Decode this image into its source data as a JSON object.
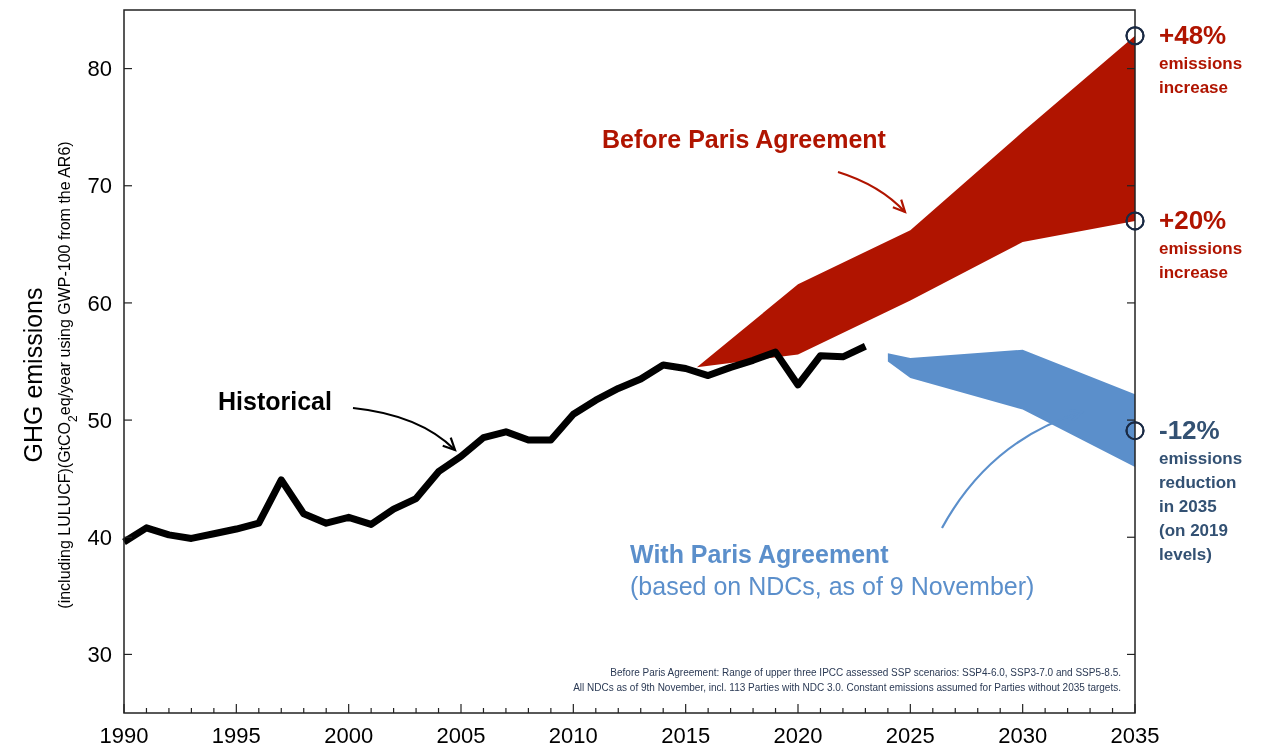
{
  "chart_data": {
    "type": "line",
    "ylabel": "GHG emissions\n(including LULUCF)(GtCO$_{2}$eq/year using GWP-100 from the AR6)",
    "xlim": [
      1990,
      2035
    ],
    "ylim": [
      25,
      85
    ],
    "xticks": [
      1990,
      {
        "value": 1991,
        "label": null
      },
      {
        "value": 1992,
        "label": null
      },
      {
        "value": 1993,
        "label": null
      },
      {
        "value": 1994,
        "label": null
      },
      1995,
      {
        "value": 1996,
        "label": null
      },
      {
        "value": 1997,
        "label": null
      },
      {
        "value": 1998,
        "label": null
      },
      {
        "value": 1999,
        "label": null
      },
      2000,
      {
        "value": 2001,
        "label": null
      },
      {
        "value": 2002,
        "label": null
      },
      {
        "value": 2003,
        "label": null
      },
      {
        "value": 2004,
        "label": null
      },
      2005,
      {
        "value": 2006,
        "label": null
      },
      {
        "value": 2007,
        "label": null
      },
      {
        "value": 2008,
        "label": null
      },
      {
        "value": 2009,
        "label": null
      },
      2010,
      {
        "value": 2011,
        "label": null
      },
      {
        "value": 2012,
        "label": null
      },
      {
        "value": 2013,
        "label": null
      },
      {
        "value": 2014,
        "label": null
      },
      2015,
      {
        "value": 2016,
        "label": null
      },
      {
        "value": 2017,
        "label": null
      },
      {
        "value": 2018,
        "label": null
      },
      {
        "value": 2019,
        "label": null
      },
      2020,
      {
        "value": 2021,
        "label": null
      },
      {
        "value": 2022,
        "label": null
      },
      {
        "value": 2023,
        "label": null
      },
      {
        "value": 2024,
        "label": null
      },
      2025,
      {
        "value": 2026,
        "label": null
      },
      {
        "value": 2027,
        "label": null
      },
      {
        "value": 2028,
        "label": null
      },
      {
        "value": 2029,
        "label": null
      },
      2030,
      {
        "value": 2031,
        "label": null
      },
      {
        "value": 2032,
        "label": null
      },
      {
        "value": 2033,
        "label": null
      },
      {
        "value": 2034,
        "label": null
      },
      2035
    ],
    "yticks": [
      30,
      40,
      50,
      60,
      70,
      80
    ],
    "grid": false,
    "marker": "none",
    "line_style": "solid",
    "series": [
      {
        "name": "Historical",
        "color": "#000000",
        "x": [
          1990,
          1991,
          1992,
          1993,
          1994,
          1995,
          1996,
          1997,
          1998,
          1999,
          2000,
          2001,
          2002,
          2003,
          2004,
          2005,
          2006,
          2007,
          2008,
          2009,
          2010,
          2011,
          2012,
          2013,
          2014,
          2015,
          2016,
          2017,
          2018,
          2019,
          2020,
          2021,
          2022,
          2023
        ],
        "values": [
          39.6,
          40.8,
          40.2,
          39.9,
          40.3,
          40.7,
          41.2,
          44.9,
          42.0,
          41.2,
          41.7,
          41.1,
          42.4,
          43.3,
          45.6,
          46.9,
          48.5,
          49.0,
          48.3,
          48.3,
          50.5,
          51.7,
          52.7,
          53.5,
          54.7,
          54.4,
          53.8,
          54.5,
          55.1,
          55.8,
          53.0,
          55.5,
          55.4,
          56.3
        ]
      },
      {
        "name": "Before Paris Agreement",
        "type": "area",
        "color": "#b01400",
        "x": [
          2015.5,
          2020,
          2025,
          2030,
          2035
        ],
        "values": [
          null,
          null,
          null,
          null,
          null
        ],
        "lower": [
          54.5,
          55.6,
          60.2,
          65.2,
          67.0
        ],
        "upper": [
          54.5,
          61.6,
          66.2,
          74.6,
          82.8
        ]
      },
      {
        "name": "With Paris Agreement\n(based on NDCs, as of 9 November)",
        "type": "area",
        "color": "#5b8fcb",
        "x": [
          2024,
          2025,
          2030,
          2035
        ],
        "values": [
          null,
          null,
          null,
          null
        ],
        "lower": [
          55.0,
          53.6,
          50.9,
          46.0
        ],
        "upper": [
          55.7,
          55.3,
          56.0,
          52.2
        ]
      },
      {
        "type": "scatter",
        "color": "#1a2a44",
        "marker": "circle",
        "x": [
          2035,
          2035,
          2035
        ],
        "values": [
          82.8,
          67.0,
          49.1
        ]
      }
    ],
    "annotations": [
      "+48%\nemissions\nincrease",
      "+20%\nemissions\nincrease",
      "-12%\nemissions\nreduction\nin 2035\n(on 2019\nlevels)",
      "Before Paris Agreement: Range of upper three IPCC assessed SSP scenarios: SSP4-6.0, SSP3-7.0 and SSP5-8.5.",
      "All NDCs as of 9th November, incl. 113 Parties with NDC 3.0. Constant emissions assumed for Parties without 2035 targets."
    ]
  }
}
